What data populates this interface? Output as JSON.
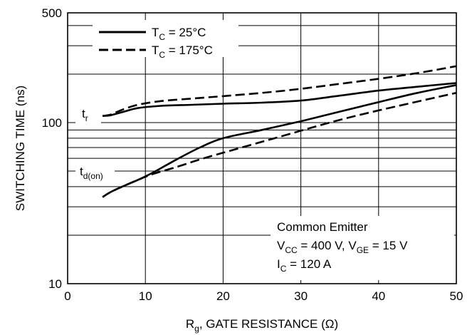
{
  "chart_data": {
    "type": "line",
    "xlabel": "R",
    "xlabel_sub": "g",
    "xlabel_rest": ", GATE RESISTANCE (Ω)",
    "ylabel": "SWITCHING TIME (ns)",
    "xlim": [
      0,
      50
    ],
    "ylim": [
      10,
      500
    ],
    "yscale": "log",
    "x_ticks": [
      0,
      10,
      20,
      30,
      40,
      50
    ],
    "x_tick_labels": [
      "0",
      "10",
      "20",
      "30",
      "40",
      "50"
    ],
    "y_tick_labels": [
      {
        "value": 10,
        "label": "10"
      },
      {
        "value": 100,
        "label": "100"
      },
      {
        "value": 500,
        "label": "500"
      }
    ],
    "grid": true,
    "legend": {
      "placement": "top-left",
      "entries": [
        {
          "style": "solid",
          "text": "T",
          "sub": "C",
          "rest": " = 25°C"
        },
        {
          "style": "dashed",
          "text": "T",
          "sub": "C",
          "rest": " = 175°C"
        }
      ]
    },
    "annotation": {
      "line1": "Common Emitter",
      "line2_a": "V",
      "line2_a_sub": "CC",
      "line2_b": " = 400 V, V",
      "line2_b_sub": "GE",
      "line2_c": " = 15 V",
      "line3_a": "I",
      "line3_a_sub": "C",
      "line3_b": " = 120 A"
    },
    "curve_labels": {
      "tr": {
        "text": "t",
        "sub": "r"
      },
      "tdon": {
        "text": "t",
        "sub": "d(on)"
      }
    },
    "series": [
      {
        "curve": "tr",
        "style": "solid",
        "x": [
          4.5,
          5.5,
          7,
          9,
          12,
          16,
          20,
          25,
          30,
          35,
          40,
          45,
          50
        ],
        "values": [
          110,
          111,
          116,
          123,
          127,
          129,
          131,
          133,
          137,
          147,
          158,
          167,
          176
        ]
      },
      {
        "curve": "tr",
        "style": "dashed",
        "x": [
          4.5,
          5.5,
          7,
          9,
          12,
          16,
          20,
          25,
          30,
          35,
          40,
          45,
          50
        ],
        "values": [
          110,
          112,
          120,
          129,
          136,
          141,
          146,
          153,
          162,
          174,
          187,
          203,
          224
        ]
      },
      {
        "curve": "tdon",
        "style": "solid",
        "x": [
          4.5,
          5.5,
          7,
          9,
          11,
          14,
          17,
          20,
          25,
          30,
          35,
          40,
          45,
          50
        ],
        "values": [
          34.5,
          37,
          40,
          44,
          49,
          59,
          70,
          80,
          90,
          102,
          117,
          134,
          153,
          171
        ]
      },
      {
        "curve": "tdon",
        "style": "dashed",
        "x": [
          4.5,
          5.5,
          7,
          9,
          11,
          14,
          17,
          20,
          25,
          30,
          35,
          40,
          45,
          50
        ],
        "values": [
          34.5,
          37,
          40,
          44,
          48,
          53,
          59,
          65,
          76,
          89,
          104,
          119,
          135,
          153
        ]
      }
    ]
  }
}
